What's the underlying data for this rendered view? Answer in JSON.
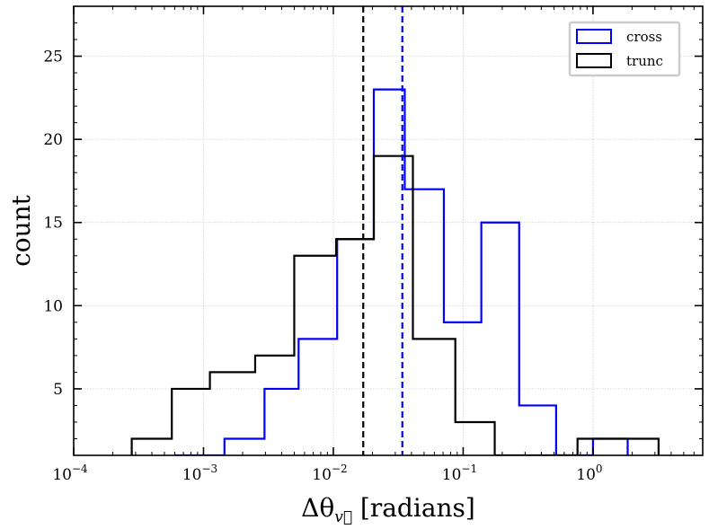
{
  "chart_data": {
    "type": "histogram",
    "xscale": "log",
    "xlim": [
      0.0001,
      7
    ],
    "ylim": [
      1,
      28
    ],
    "xticks": [
      {
        "value": 0.0001,
        "base": "10",
        "exp": "−4"
      },
      {
        "value": 0.001,
        "base": "10",
        "exp": "−3"
      },
      {
        "value": 0.01,
        "base": "10",
        "exp": "−2"
      },
      {
        "value": 0.1,
        "base": "10",
        "exp": "−1"
      },
      {
        "value": 1,
        "base": "10",
        "exp": "0"
      }
    ],
    "yticks": [
      5,
      10,
      15,
      20,
      25
    ],
    "ytick_labels": [
      "5",
      "10",
      "15",
      "20",
      "25"
    ],
    "xlabel": {
      "main": "Δθ",
      "sub": "v⃗",
      "suffix": " [radians]"
    },
    "ylabel": "count",
    "grid": true,
    "legend_position": "top-right",
    "series": [
      {
        "name": "cross",
        "color": "#0000ff",
        "bin_edges": [
          0.00061,
          0.00145,
          0.00295,
          0.0054,
          0.0107,
          0.0205,
          0.0355,
          0.071,
          0.138,
          0.27,
          0.52,
          1.0,
          1.85
        ],
        "counts": [
          1,
          2,
          5,
          8,
          14,
          23,
          17,
          9,
          15,
          4,
          1,
          2
        ],
        "marker_line": 0.034
      },
      {
        "name": "trunc",
        "color": "#000000",
        "bin_edges": [
          0.00028,
          0.00057,
          0.00112,
          0.0025,
          0.005,
          0.0105,
          0.0205,
          0.041,
          0.087,
          0.175,
          0.36,
          0.76,
          1.5,
          3.2
        ],
        "counts": [
          2,
          5,
          6,
          7,
          13,
          14,
          19,
          8,
          3,
          1,
          1,
          2,
          2
        ],
        "marker_line": 0.017
      }
    ]
  }
}
